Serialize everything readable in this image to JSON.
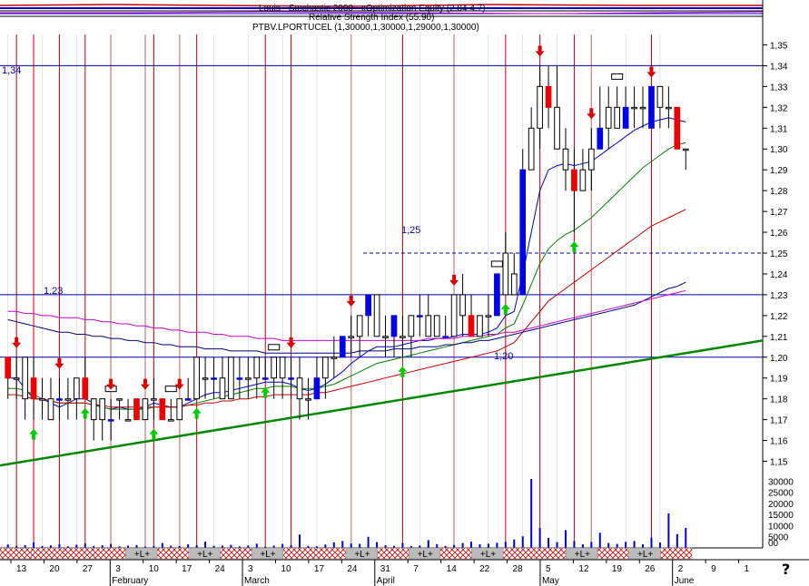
{
  "header": {
    "line1": "Louis - Stochastic 2000 - xOptimization Equity (2.84 4.7)",
    "line2": "Relative Strength Index (55.90)",
    "line3": "PTBV.LPORTUCEL (1,30000,1,30000,1,29000,1,30000)"
  },
  "annotations": {
    "top_level": "1,34",
    "mid_level": "1,25",
    "left_level": "1,23",
    "low_level": "1,20"
  },
  "help_glyph": "?",
  "band_label": "+L+",
  "box_marker": "BXE",
  "colors": {
    "up_bar": "#0000ee",
    "down_bar": "#ee0000",
    "vline": "#cc0000",
    "trend": "#008800",
    "ma_blue": "#0000cc",
    "ma_green": "#008000",
    "ma_red": "#cc0000",
    "ma_navy": "#000080",
    "ma_magenta": "#cc00cc",
    "signal_buy": "#00cc00",
    "signal_sell": "#dd0000",
    "volume": "#0000dd",
    "band_on": "#bbbbbb",
    "band_hatch": "#dd0000"
  },
  "chart_data": {
    "type": "candlestick",
    "y_ticks": [
      "1,35",
      "1,34",
      "1,33",
      "1,32",
      "1,31",
      "1,30",
      "1,29",
      "1,28",
      "1,27",
      "1,26",
      "1,25",
      "1,24",
      "1,23",
      "1,22",
      "1,21",
      "1,20",
      "1,19",
      "1,18",
      "1,17",
      "1,16",
      "1,15"
    ],
    "ylim": [
      1.145,
      1.355
    ],
    "volume_ticks": [
      "30000",
      "25000",
      "20000",
      "15000",
      "10000",
      "5000",
      "00"
    ],
    "volume_ylim": [
      0,
      31000
    ],
    "x_ticks": [
      "13",
      "20",
      "27",
      "3",
      "10",
      "17",
      "24",
      "3",
      "10",
      "17",
      "24",
      "31",
      "7",
      "14",
      "22",
      "28",
      "5",
      "12",
      "19",
      "26",
      "2",
      "9",
      "1"
    ],
    "month_labels": [
      "February",
      "March",
      "April",
      "May",
      "June"
    ],
    "horizontal_levels": [
      1.34,
      1.25,
      1.23,
      1.2
    ],
    "trendline": {
      "start": 1.148,
      "end": 1.208
    },
    "bars": [
      [
        1.2,
        1.2,
        1.18,
        1.19
      ],
      [
        1.19,
        1.2,
        1.18,
        1.19
      ],
      [
        1.2,
        1.2,
        1.17,
        1.18
      ],
      [
        1.19,
        1.2,
        1.17,
        1.18
      ],
      [
        1.18,
        1.19,
        1.17,
        1.18
      ],
      [
        1.18,
        1.19,
        1.17,
        1.17
      ],
      [
        1.18,
        1.19,
        1.17,
        1.18
      ],
      [
        1.18,
        1.19,
        1.17,
        1.18
      ],
      [
        1.19,
        1.19,
        1.17,
        1.18
      ],
      [
        1.19,
        1.2,
        1.18,
        1.18
      ],
      [
        1.18,
        1.18,
        1.16,
        1.17
      ],
      [
        1.17,
        1.18,
        1.16,
        1.18
      ],
      [
        1.17,
        1.18,
        1.16,
        1.17
      ],
      [
        1.18,
        1.18,
        1.17,
        1.18
      ],
      [
        1.17,
        1.18,
        1.17,
        1.17
      ],
      [
        1.18,
        1.18,
        1.17,
        1.17
      ],
      [
        1.17,
        1.18,
        1.17,
        1.18
      ],
      [
        1.18,
        1.19,
        1.17,
        1.18
      ],
      [
        1.18,
        1.18,
        1.17,
        1.17
      ],
      [
        1.17,
        1.18,
        1.17,
        1.17
      ],
      [
        1.17,
        1.18,
        1.17,
        1.18
      ],
      [
        1.18,
        1.19,
        1.18,
        1.18
      ],
      [
        1.18,
        1.2,
        1.18,
        1.2
      ],
      [
        1.19,
        1.2,
        1.18,
        1.19
      ],
      [
        1.19,
        1.2,
        1.18,
        1.19
      ],
      [
        1.19,
        1.2,
        1.18,
        1.18
      ],
      [
        1.18,
        1.2,
        1.18,
        1.2
      ],
      [
        1.19,
        1.2,
        1.18,
        1.19
      ],
      [
        1.19,
        1.2,
        1.18,
        1.19
      ],
      [
        1.19,
        1.2,
        1.18,
        1.2
      ],
      [
        1.19,
        1.2,
        1.19,
        1.19
      ],
      [
        1.2,
        1.2,
        1.18,
        1.19
      ],
      [
        1.19,
        1.2,
        1.18,
        1.2
      ],
      [
        1.19,
        1.2,
        1.18,
        1.19
      ],
      [
        1.19,
        1.2,
        1.17,
        1.18
      ],
      [
        1.18,
        1.19,
        1.17,
        1.18
      ],
      [
        1.18,
        1.2,
        1.18,
        1.19
      ],
      [
        1.19,
        1.2,
        1.18,
        1.2
      ],
      [
        1.2,
        1.21,
        1.19,
        1.2
      ],
      [
        1.2,
        1.21,
        1.2,
        1.21
      ],
      [
        1.21,
        1.22,
        1.2,
        1.21
      ],
      [
        1.21,
        1.22,
        1.2,
        1.22
      ],
      [
        1.22,
        1.23,
        1.21,
        1.23
      ],
      [
        1.23,
        1.23,
        1.21,
        1.21
      ],
      [
        1.21,
        1.22,
        1.2,
        1.21
      ],
      [
        1.21,
        1.22,
        1.2,
        1.22
      ],
      [
        1.21,
        1.22,
        1.2,
        1.21
      ],
      [
        1.21,
        1.22,
        1.2,
        1.22
      ],
      [
        1.22,
        1.23,
        1.21,
        1.22
      ],
      [
        1.22,
        1.23,
        1.21,
        1.21
      ],
      [
        1.21,
        1.22,
        1.21,
        1.22
      ],
      [
        1.21,
        1.22,
        1.21,
        1.21
      ],
      [
        1.21,
        1.23,
        1.21,
        1.23
      ],
      [
        1.23,
        1.24,
        1.21,
        1.22
      ],
      [
        1.22,
        1.23,
        1.21,
        1.21
      ],
      [
        1.21,
        1.22,
        1.21,
        1.22
      ],
      [
        1.22,
        1.23,
        1.21,
        1.22
      ],
      [
        1.22,
        1.24,
        1.22,
        1.24
      ],
      [
        1.23,
        1.26,
        1.23,
        1.25
      ],
      [
        1.24,
        1.25,
        1.23,
        1.23
      ],
      [
        1.23,
        1.3,
        1.23,
        1.29
      ],
      [
        1.29,
        1.32,
        1.29,
        1.31
      ],
      [
        1.31,
        1.34,
        1.3,
        1.33
      ],
      [
        1.33,
        1.34,
        1.31,
        1.32
      ],
      [
        1.32,
        1.34,
        1.3,
        1.3
      ],
      [
        1.3,
        1.31,
        1.28,
        1.29
      ],
      [
        1.29,
        1.3,
        1.26,
        1.28
      ],
      [
        1.28,
        1.3,
        1.28,
        1.29
      ],
      [
        1.29,
        1.31,
        1.28,
        1.3
      ],
      [
        1.3,
        1.33,
        1.3,
        1.31
      ],
      [
        1.31,
        1.33,
        1.3,
        1.32
      ],
      [
        1.32,
        1.33,
        1.31,
        1.31
      ],
      [
        1.31,
        1.33,
        1.31,
        1.32
      ],
      [
        1.32,
        1.33,
        1.31,
        1.32
      ],
      [
        1.32,
        1.33,
        1.31,
        1.32
      ],
      [
        1.31,
        1.33,
        1.31,
        1.33
      ],
      [
        1.33,
        1.33,
        1.31,
        1.32
      ],
      [
        1.32,
        1.33,
        1.31,
        1.32
      ],
      [
        1.32,
        1.32,
        1.3,
        1.3
      ],
      [
        1.3,
        1.3,
        1.29,
        1.3
      ]
    ],
    "ma_blue": [
      1.19,
      1.19,
      1.185,
      1.18,
      1.18,
      1.178,
      1.176,
      1.178,
      1.18,
      1.18,
      1.178,
      1.176,
      1.175,
      1.176,
      1.175,
      1.175,
      1.176,
      1.178,
      1.177,
      1.176,
      1.176,
      1.178,
      1.18,
      1.182,
      1.183,
      1.183,
      1.184,
      1.185,
      1.186,
      1.187,
      1.188,
      1.188,
      1.188,
      1.187,
      1.185,
      1.184,
      1.185,
      1.187,
      1.19,
      1.193,
      1.197,
      1.2,
      1.203,
      1.205,
      1.205,
      1.205,
      1.206,
      1.207,
      1.208,
      1.208,
      1.209,
      1.209,
      1.21,
      1.211,
      1.211,
      1.211,
      1.212,
      1.214,
      1.22,
      1.222,
      1.24,
      1.26,
      1.28,
      1.29,
      1.292,
      1.293,
      1.292,
      1.293,
      1.294,
      1.297,
      1.3,
      1.303,
      1.306,
      1.309,
      1.311,
      1.313,
      1.314,
      1.315,
      1.314,
      1.313
    ],
    "ma_green": [
      1.185,
      1.185,
      1.184,
      1.182,
      1.18,
      1.179,
      1.178,
      1.178,
      1.178,
      1.178,
      1.177,
      1.176,
      1.175,
      1.175,
      1.175,
      1.175,
      1.175,
      1.176,
      1.176,
      1.176,
      1.176,
      1.177,
      1.178,
      1.179,
      1.18,
      1.181,
      1.182,
      1.183,
      1.184,
      1.185,
      1.185,
      1.186,
      1.186,
      1.186,
      1.185,
      1.185,
      1.185,
      1.186,
      1.187,
      1.189,
      1.191,
      1.193,
      1.195,
      1.197,
      1.198,
      1.199,
      1.2,
      1.201,
      1.202,
      1.203,
      1.204,
      1.205,
      1.206,
      1.207,
      1.208,
      1.209,
      1.21,
      1.211,
      1.214,
      1.216,
      1.225,
      1.235,
      1.245,
      1.252,
      1.256,
      1.259,
      1.261,
      1.264,
      1.267,
      1.271,
      1.275,
      1.279,
      1.283,
      1.287,
      1.291,
      1.294,
      1.297,
      1.3,
      1.302,
      1.303
    ],
    "ma_red": [
      1.182,
      1.182,
      1.181,
      1.18,
      1.18,
      1.179,
      1.178,
      1.178,
      1.178,
      1.178,
      1.177,
      1.177,
      1.176,
      1.176,
      1.176,
      1.176,
      1.176,
      1.176,
      1.176,
      1.176,
      1.176,
      1.177,
      1.177,
      1.178,
      1.178,
      1.179,
      1.179,
      1.18,
      1.18,
      1.181,
      1.181,
      1.182,
      1.182,
      1.182,
      1.182,
      1.182,
      1.183,
      1.183,
      1.184,
      1.185,
      1.186,
      1.187,
      1.188,
      1.189,
      1.19,
      1.191,
      1.192,
      1.193,
      1.194,
      1.195,
      1.196,
      1.197,
      1.198,
      1.199,
      1.2,
      1.201,
      1.202,
      1.203,
      1.205,
      1.207,
      1.212,
      1.217,
      1.222,
      1.227,
      1.23,
      1.233,
      1.236,
      1.239,
      1.242,
      1.245,
      1.248,
      1.251,
      1.254,
      1.257,
      1.26,
      1.263,
      1.265,
      1.267,
      1.269,
      1.271
    ],
    "ma_navy": [
      1.218,
      1.217,
      1.216,
      1.215,
      1.214,
      1.213,
      1.212,
      1.212,
      1.211,
      1.211,
      1.21,
      1.21,
      1.209,
      1.209,
      1.208,
      1.208,
      1.207,
      1.207,
      1.206,
      1.206,
      1.205,
      1.205,
      1.205,
      1.204,
      1.204,
      1.204,
      1.203,
      1.203,
      1.203,
      1.203,
      1.202,
      1.202,
      1.202,
      1.202,
      1.202,
      1.202,
      1.202,
      1.202,
      1.202,
      1.202,
      1.202,
      1.203,
      1.203,
      1.203,
      1.203,
      1.204,
      1.204,
      1.204,
      1.205,
      1.205,
      1.205,
      1.206,
      1.206,
      1.207,
      1.207,
      1.208,
      1.208,
      1.209,
      1.21,
      1.211,
      1.212,
      1.213,
      1.214,
      1.215,
      1.216,
      1.217,
      1.218,
      1.219,
      1.22,
      1.221,
      1.222,
      1.223,
      1.224,
      1.225,
      1.227,
      1.229,
      1.231,
      1.233,
      1.234,
      1.236
    ],
    "ma_magenta": [
      1.222,
      1.222,
      1.221,
      1.221,
      1.22,
      1.22,
      1.219,
      1.219,
      1.219,
      1.218,
      1.218,
      1.217,
      1.217,
      1.216,
      1.216,
      1.215,
      1.215,
      1.214,
      1.214,
      1.213,
      1.213,
      1.212,
      1.212,
      1.212,
      1.211,
      1.211,
      1.21,
      1.21,
      1.21,
      1.209,
      1.209,
      1.209,
      1.208,
      1.208,
      1.208,
      1.208,
      1.208,
      1.208,
      1.208,
      1.208,
      1.208,
      1.208,
      1.208,
      1.208,
      1.208,
      1.208,
      1.208,
      1.208,
      1.208,
      1.209,
      1.209,
      1.209,
      1.209,
      1.21,
      1.21,
      1.21,
      1.211,
      1.211,
      1.212,
      1.212,
      1.213,
      1.214,
      1.215,
      1.216,
      1.217,
      1.218,
      1.219,
      1.22,
      1.221,
      1.222,
      1.223,
      1.224,
      1.225,
      1.226,
      1.227,
      1.228,
      1.229,
      1.23,
      1.231,
      1.232
    ],
    "volume": [
      1500,
      900,
      1200,
      2500,
      800,
      1100,
      1600,
      700,
      1400,
      2000,
      900,
      1200,
      1800,
      700,
      1000,
      1300,
      600,
      900,
      2200,
      1000,
      800,
      1600,
      1200,
      2800,
      900,
      1000,
      1400,
      700,
      1100,
      1900,
      600,
      1000,
      1800,
      1200,
      6000,
      900,
      700,
      1500,
      2500,
      3100,
      2000,
      1800,
      5000,
      2600,
      1200,
      900,
      2200,
      800,
      1100,
      3500,
      1700,
      900,
      1300,
      2200,
      2800,
      1600,
      1900,
      2300,
      2700,
      3800,
      5200,
      31000,
      9000,
      4500,
      2600,
      8000,
      3100,
      1600,
      2700,
      6800,
      2200,
      1800,
      2700,
      3100,
      1600,
      4600,
      2400,
      15500,
      6200,
      9000
    ],
    "sell_signals": [
      1,
      6,
      12,
      16,
      20,
      33,
      40,
      52,
      62,
      68,
      75
    ],
    "buy_signals": [
      3,
      9,
      17,
      22,
      30,
      46,
      58,
      66
    ],
    "box_markers": [
      12,
      19,
      31,
      57,
      71
    ],
    "band_states": [
      "hatch",
      "hatch",
      "hatch",
      "hatch",
      "on",
      "hatch",
      "on",
      "hatch",
      "on",
      "hatch",
      "hatch",
      "on",
      "hatch",
      "on",
      "hatch",
      "on",
      "hatch",
      "hatch",
      "on",
      "hatch",
      "on",
      "hatch"
    ],
    "volume_unit": "shares"
  }
}
